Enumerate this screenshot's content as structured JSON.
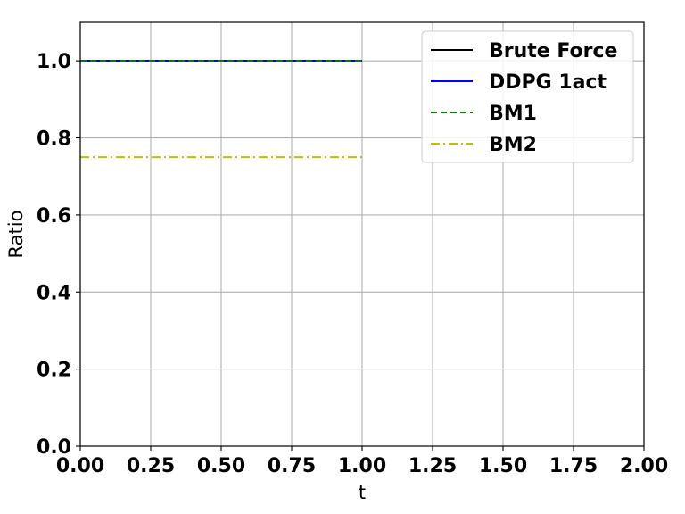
{
  "chart_data": {
    "type": "line",
    "xlabel": "t",
    "ylabel": "Ratio",
    "xlim": [
      0,
      2
    ],
    "ylim": [
      0,
      1.1
    ],
    "grid": true,
    "legend_position": "top-right",
    "xticks": [
      "0.00",
      "0.25",
      "0.50",
      "0.75",
      "1.00",
      "1.25",
      "1.50",
      "1.75",
      "2.00"
    ],
    "yticks": [
      "0.0",
      "0.2",
      "0.4",
      "0.6",
      "0.8",
      "1.0"
    ],
    "series": [
      {
        "name": "Brute Force",
        "color": "#000000",
        "style": "solid",
        "x": [
          0,
          1
        ],
        "y": [
          1.0,
          1.0
        ]
      },
      {
        "name": "DDPG 1act",
        "color": "#0000ff",
        "style": "solid",
        "x": [
          0,
          1
        ],
        "y": [
          1.0,
          1.0
        ]
      },
      {
        "name": "BM1",
        "color": "#008000",
        "style": "dashed",
        "x": [
          0,
          1
        ],
        "y": [
          1.0,
          1.0
        ]
      },
      {
        "name": "BM2",
        "color": "#bfbf00",
        "style": "dashdot",
        "x": [
          0,
          1
        ],
        "y": [
          0.75,
          0.75
        ]
      }
    ]
  }
}
